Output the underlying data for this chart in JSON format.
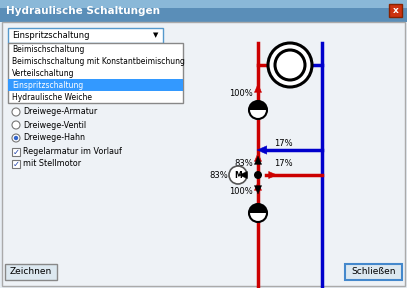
{
  "title": "Hydraulische Schaltungen",
  "dialog_bg": "#e8eef4",
  "dropdown_text": "Einspritzschaltung",
  "dropdown_items": [
    "Beimischschaltung",
    "Beimischschaltung mit Konstantbeimischung",
    "Verteilschaltung",
    "Einspritzschaltung",
    "Hydraulische Weiche"
  ],
  "selected_item_index": 3,
  "radio_options": [
    "Dreiwege-Armatur",
    "Dreiwege-Ventil",
    "Dreiwege-Hahn"
  ],
  "radio_selected": 2,
  "checkboxes": [
    {
      "label": "Regelarmatur im Vorlauf",
      "checked": true
    },
    {
      "label": "mit Stellmotor",
      "checked": true
    }
  ],
  "btn_left": "Zeichnen",
  "btn_right": "Schließen",
  "red": "#cc0000",
  "blue": "#0000cc",
  "black": "#000000",
  "white": "#ffffff",
  "selected_highlight": "#3399ff"
}
